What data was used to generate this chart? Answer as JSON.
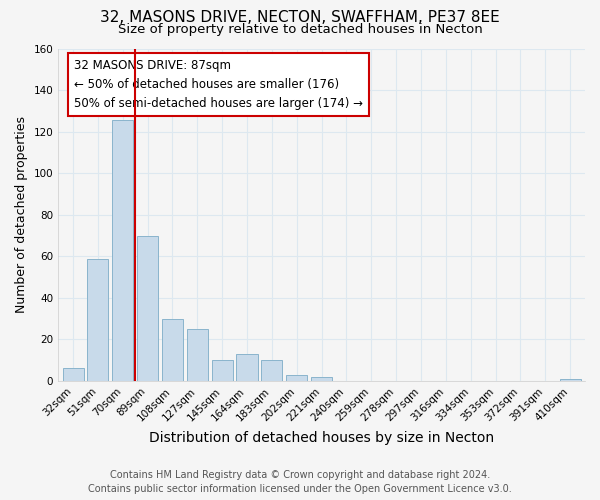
{
  "title": "32, MASONS DRIVE, NECTON, SWAFFHAM, PE37 8EE",
  "subtitle": "Size of property relative to detached houses in Necton",
  "xlabel": "Distribution of detached houses by size in Necton",
  "ylabel": "Number of detached properties",
  "bar_color": "#c8daea",
  "bar_edge_color": "#8ab4cc",
  "categories": [
    "32sqm",
    "51sqm",
    "70sqm",
    "89sqm",
    "108sqm",
    "127sqm",
    "145sqm",
    "164sqm",
    "183sqm",
    "202sqm",
    "221sqm",
    "240sqm",
    "259sqm",
    "278sqm",
    "297sqm",
    "316sqm",
    "334sqm",
    "353sqm",
    "372sqm",
    "391sqm",
    "410sqm"
  ],
  "values": [
    6,
    59,
    126,
    70,
    30,
    25,
    10,
    13,
    10,
    3,
    2,
    0,
    0,
    0,
    0,
    0,
    0,
    0,
    0,
    0,
    1
  ],
  "vline_color": "#cc0000",
  "vline_x_index": 2,
  "ylim": [
    0,
    160
  ],
  "yticks": [
    0,
    20,
    40,
    60,
    80,
    100,
    120,
    140,
    160
  ],
  "annotation_title": "32 MASONS DRIVE: 87sqm",
  "annotation_line1": "← 50% of detached houses are smaller (176)",
  "annotation_line2": "50% of semi-detached houses are larger (174) →",
  "footer1": "Contains HM Land Registry data © Crown copyright and database right 2024.",
  "footer2": "Contains public sector information licensed under the Open Government Licence v3.0.",
  "background_color": "#f5f5f5",
  "plot_bg_color": "#f5f5f5",
  "grid_color": "#dde8f0",
  "title_fontsize": 11,
  "subtitle_fontsize": 9.5,
  "xlabel_fontsize": 10,
  "ylabel_fontsize": 9,
  "tick_fontsize": 7.5,
  "footer_fontsize": 7,
  "ann_fontsize": 8.5
}
